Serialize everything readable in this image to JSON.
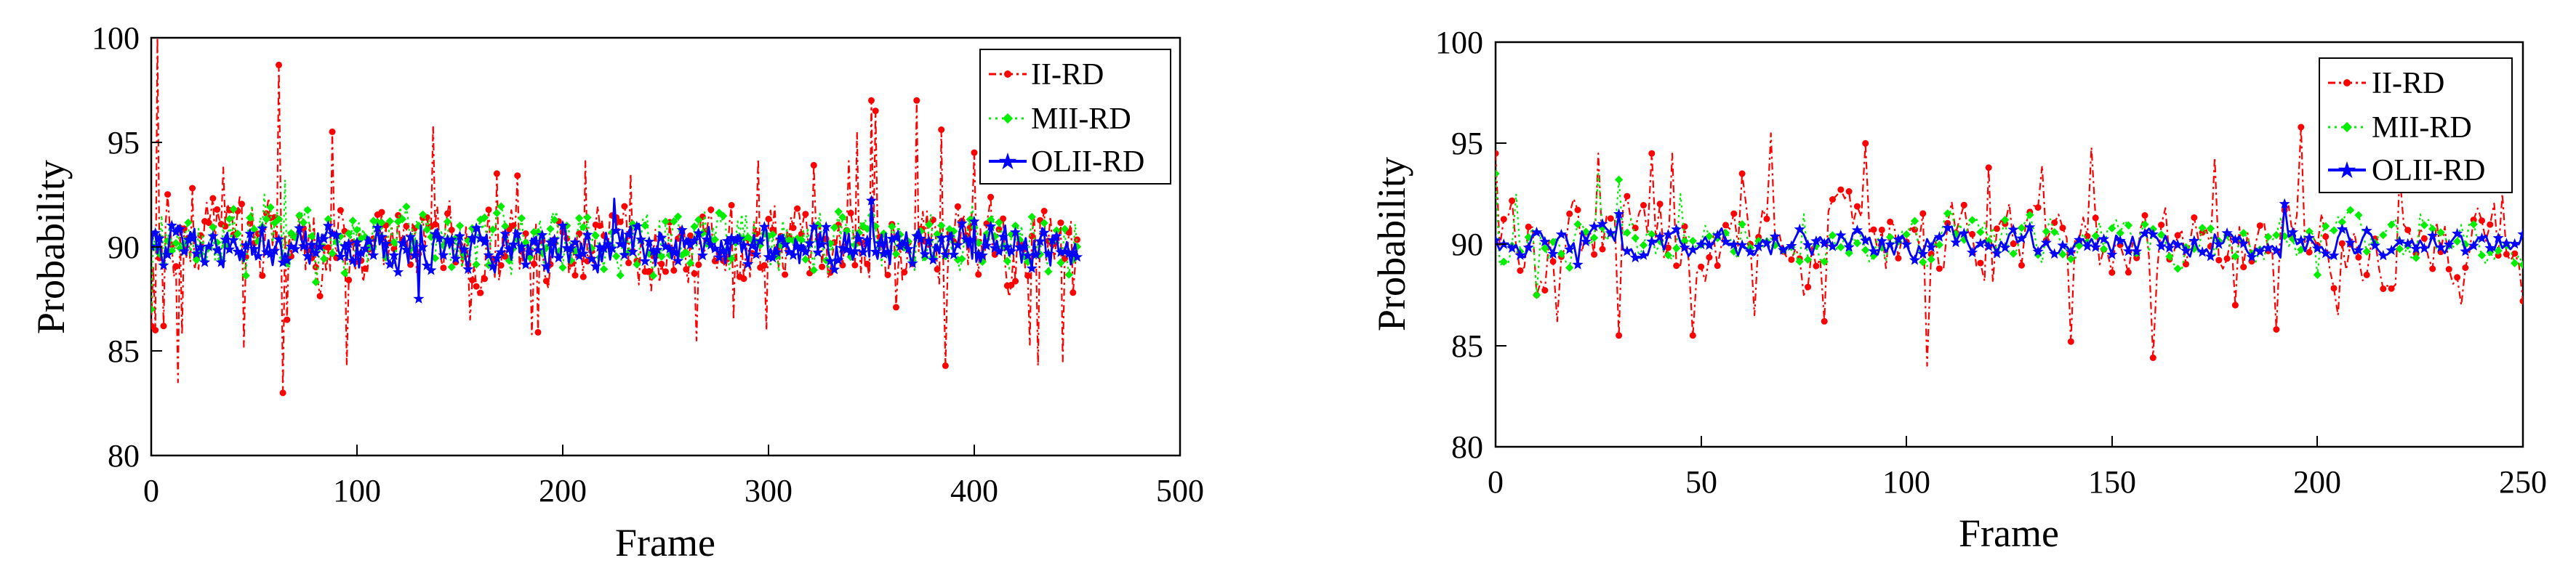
{
  "colors": {
    "ii_rd": "#ff0000",
    "mii_rd": "#00ee00",
    "olii_rd": "#0000ff",
    "axis": "#000000",
    "background": "#ffffff"
  },
  "chart_data": [
    {
      "type": "line",
      "title": "",
      "xlabel": "Frame",
      "ylabel": "Probability",
      "xlim": [
        0,
        500
      ],
      "ylim": [
        80,
        100
      ],
      "xticks": [
        0,
        100,
        200,
        300,
        400,
        500
      ],
      "yticks": [
        80,
        85,
        90,
        95,
        100
      ],
      "xtick_labels": [
        "0",
        "100",
        "200",
        "300",
        "400",
        "500"
      ],
      "ytick_labels": [
        "80",
        "85",
        "90",
        "95",
        "100"
      ],
      "legend_position": "top-right",
      "frames": 450,
      "series": [
        {
          "name": "II-RD",
          "color": "#ff0000",
          "line": "dash-dot",
          "marker": "dot",
          "x": [
            0,
            2,
            3,
            6,
            8,
            13,
            15,
            20,
            35,
            45,
            62,
            64,
            66,
            88,
            95,
            137,
            155,
            168,
            178,
            185,
            188,
            211,
            233,
            265,
            283,
            295,
            299,
            322,
            339,
            343,
            350,
            352,
            362,
            372,
            384,
            386,
            400,
            427,
            431,
            443,
            448
          ],
          "values": [
            86.2,
            86,
            100,
            86.2,
            92.5,
            83.5,
            85.8,
            92.8,
            93.8,
            85.2,
            98.7,
            83,
            86.5,
            95.5,
            84.3,
            95.8,
            86.5,
            93.5,
            93.4,
            85.8,
            85.9,
            94.1,
            93.5,
            85.5,
            86.5,
            94.2,
            86,
            93.9,
            94.1,
            95.5,
            97,
            96.5,
            87.1,
            97,
            95.6,
            84.3,
            94.5,
            85.3,
            84.3,
            84.5,
            87.8
          ],
          "noise_range": [
            87,
            93
          ]
        },
        {
          "name": "MII-RD",
          "color": "#00ee00",
          "line": "dotted",
          "marker": "diamond",
          "x": [
            0,
            5,
            20,
            40,
            55,
            65,
            80,
            100,
            150,
            200,
            250,
            300,
            350,
            380,
            420,
            450
          ],
          "values": [
            87,
            91.5,
            90.5,
            91.8,
            92.5,
            93.2,
            88.3,
            90.8,
            91,
            89,
            91.2,
            90.5,
            91.5,
            89.5,
            91,
            90
          ],
          "noise_range": [
            88,
            92.5
          ]
        },
        {
          "name": "OLII-RD",
          "color": "#0000ff",
          "line": "solid",
          "marker": "star",
          "x": [
            0,
            30,
            60,
            100,
            130,
            150,
            180,
            200,
            225,
            250,
            300,
            350,
            400,
            440,
            450
          ],
          "values": [
            90,
            90.5,
            89.8,
            90.2,
            87.5,
            90.5,
            90,
            91,
            92.3,
            90,
            89.5,
            92.2,
            91.2,
            90.5,
            89.5
          ],
          "noise_range": [
            88.5,
            91.5
          ]
        }
      ]
    },
    {
      "type": "line",
      "title": "",
      "xlabel": "Frame",
      "ylabel": "Probability",
      "xlim": [
        0,
        250
      ],
      "ylim": [
        80,
        100
      ],
      "xticks": [
        0,
        50,
        100,
        150,
        200,
        250
      ],
      "yticks": [
        80,
        85,
        90,
        95,
        100
      ],
      "xtick_labels": [
        "0",
        "50",
        "100",
        "150",
        "200",
        "250"
      ],
      "ytick_labels": [
        "80",
        "85",
        "90",
        "95",
        "100"
      ],
      "legend_position": "top-right",
      "frames": 250,
      "series": [
        {
          "name": "II-RD",
          "color": "#ff0000",
          "line": "dash-dot",
          "marker": "dot",
          "x": [
            0,
            10,
            15,
            25,
            30,
            38,
            40,
            43,
            48,
            55,
            60,
            63,
            67,
            75,
            80,
            90,
            105,
            120,
            133,
            140,
            145,
            160,
            175,
            180,
            190,
            196,
            205,
            220,
            235,
            245,
            250
          ],
          "values": [
            94.5,
            87.5,
            86.2,
            94.5,
            85.5,
            94.5,
            92,
            94.5,
            85.5,
            90,
            93.5,
            86.5,
            95.5,
            87.5,
            86.2,
            95,
            84,
            93.8,
            93.9,
            85.2,
            94.8,
            84.4,
            94.3,
            87,
            85.8,
            95.8,
            86.5,
            93.5,
            87,
            92.5,
            87.2
          ],
          "noise_range": [
            87,
            93
          ]
        },
        {
          "name": "MII-RD",
          "color": "#00ee00",
          "line": "dotted",
          "marker": "diamond",
          "x": [
            0,
            5,
            10,
            20,
            25,
            30,
            45,
            60,
            75,
            100,
            125,
            150,
            175,
            200,
            225,
            250
          ],
          "values": [
            93.5,
            92.5,
            87.5,
            91,
            93.5,
            93.2,
            92.5,
            91,
            91.5,
            90.5,
            89.5,
            90.8,
            89.5,
            88.5,
            91.5,
            89
          ],
          "noise_range": [
            88.5,
            92
          ]
        },
        {
          "name": "OLII-RD",
          "color": "#0000ff",
          "line": "solid",
          "marker": "star",
          "x": [
            0,
            20,
            30,
            50,
            75,
            100,
            125,
            150,
            175,
            192,
            200,
            225,
            250
          ],
          "values": [
            90.2,
            89,
            91.5,
            90,
            90.5,
            90,
            90.5,
            89.5,
            90.5,
            92,
            89.8,
            90.2,
            90.5
          ],
          "noise_range": [
            89,
            91.2
          ]
        }
      ]
    }
  ]
}
